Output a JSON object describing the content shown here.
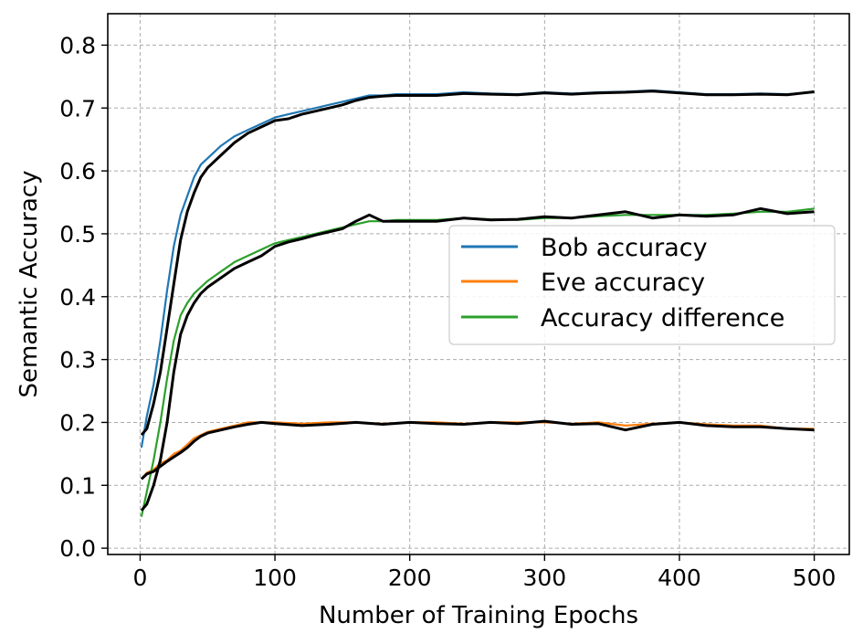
{
  "chart_data": {
    "type": "line",
    "xlabel": "Number of Training Epochs",
    "ylabel": "Semantic Accuracy",
    "xlim": [
      -24,
      526
    ],
    "ylim": [
      -0.01,
      0.85
    ],
    "xticks": [
      "0",
      "100",
      "200",
      "300",
      "400",
      "500"
    ],
    "yticks": [
      "0.0",
      "0.1",
      "0.2",
      "0.3",
      "0.4",
      "0.5",
      "0.6",
      "0.7",
      "0.8"
    ],
    "grid": true,
    "legend_position": "center-right",
    "smoothed_color": "#000000",
    "series": [
      {
        "name": "Bob accuracy",
        "color": "#1f77b4",
        "x": [
          1,
          5,
          10,
          15,
          20,
          25,
          30,
          35,
          40,
          45,
          50,
          60,
          70,
          80,
          90,
          100,
          110,
          120,
          130,
          140,
          150,
          160,
          170,
          180,
          190,
          200,
          220,
          240,
          260,
          280,
          300,
          320,
          340,
          360,
          380,
          400,
          420,
          440,
          460,
          480,
          500
        ],
        "values": [
          0.16,
          0.21,
          0.26,
          0.33,
          0.41,
          0.48,
          0.53,
          0.56,
          0.59,
          0.61,
          0.62,
          0.64,
          0.655,
          0.665,
          0.675,
          0.685,
          0.69,
          0.695,
          0.7,
          0.705,
          0.71,
          0.715,
          0.72,
          0.72,
          0.722,
          0.722,
          0.722,
          0.725,
          0.723,
          0.722,
          0.725,
          0.723,
          0.725,
          0.726,
          0.728,
          0.725,
          0.722,
          0.722,
          0.723,
          0.722,
          0.725
        ],
        "smoothed": [
          0.18,
          0.19,
          0.23,
          0.28,
          0.35,
          0.42,
          0.49,
          0.535,
          0.565,
          0.59,
          0.605,
          0.625,
          0.645,
          0.66,
          0.67,
          0.68,
          0.683,
          0.69,
          0.695,
          0.7,
          0.705,
          0.712,
          0.717,
          0.719,
          0.72,
          0.72,
          0.72,
          0.723,
          0.722,
          0.721,
          0.724,
          0.722,
          0.724,
          0.725,
          0.727,
          0.724,
          0.721,
          0.721,
          0.722,
          0.721,
          0.726
        ]
      },
      {
        "name": "Eve accuracy",
        "color": "#ff7f0e",
        "x": [
          1,
          5,
          10,
          15,
          20,
          25,
          30,
          35,
          40,
          45,
          50,
          60,
          70,
          80,
          90,
          100,
          120,
          140,
          160,
          180,
          200,
          220,
          240,
          260,
          280,
          300,
          320,
          340,
          360,
          380,
          400,
          420,
          440,
          460,
          480,
          500
        ],
        "values": [
          0.11,
          0.12,
          0.125,
          0.135,
          0.14,
          0.15,
          0.155,
          0.165,
          0.175,
          0.18,
          0.185,
          0.19,
          0.195,
          0.2,
          0.2,
          0.2,
          0.198,
          0.2,
          0.2,
          0.198,
          0.2,
          0.2,
          0.198,
          0.2,
          0.2,
          0.2,
          0.198,
          0.2,
          0.195,
          0.198,
          0.2,
          0.197,
          0.195,
          0.195,
          0.19,
          0.19
        ],
        "smoothed": [
          0.11,
          0.118,
          0.122,
          0.13,
          0.138,
          0.145,
          0.152,
          0.16,
          0.17,
          0.178,
          0.183,
          0.188,
          0.193,
          0.197,
          0.2,
          0.198,
          0.195,
          0.197,
          0.2,
          0.197,
          0.2,
          0.198,
          0.197,
          0.2,
          0.198,
          0.202,
          0.197,
          0.198,
          0.188,
          0.197,
          0.2,
          0.195,
          0.193,
          0.193,
          0.19,
          0.188
        ]
      },
      {
        "name": "Accuracy difference",
        "color": "#2ca02c",
        "x": [
          1,
          5,
          10,
          15,
          20,
          25,
          30,
          35,
          40,
          45,
          50,
          60,
          70,
          80,
          90,
          100,
          110,
          120,
          130,
          140,
          150,
          160,
          170,
          180,
          190,
          200,
          220,
          240,
          260,
          280,
          300,
          320,
          340,
          360,
          380,
          400,
          420,
          440,
          460,
          480,
          500
        ],
        "values": [
          0.05,
          0.09,
          0.14,
          0.2,
          0.27,
          0.33,
          0.37,
          0.39,
          0.405,
          0.415,
          0.425,
          0.44,
          0.455,
          0.465,
          0.475,
          0.485,
          0.49,
          0.495,
          0.5,
          0.505,
          0.51,
          0.515,
          0.52,
          0.52,
          0.522,
          0.522,
          0.522,
          0.525,
          0.523,
          0.522,
          0.525,
          0.525,
          0.528,
          0.53,
          0.53,
          0.53,
          0.53,
          0.532,
          0.535,
          0.535,
          0.54
        ],
        "smoothed": [
          0.06,
          0.07,
          0.1,
          0.14,
          0.2,
          0.28,
          0.34,
          0.37,
          0.39,
          0.405,
          0.415,
          0.43,
          0.445,
          0.455,
          0.465,
          0.48,
          0.487,
          0.492,
          0.498,
          0.503,
          0.508,
          0.52,
          0.53,
          0.52,
          0.52,
          0.52,
          0.52,
          0.525,
          0.522,
          0.523,
          0.527,
          0.525,
          0.53,
          0.535,
          0.525,
          0.53,
          0.528,
          0.53,
          0.54,
          0.532,
          0.535
        ]
      }
    ]
  }
}
